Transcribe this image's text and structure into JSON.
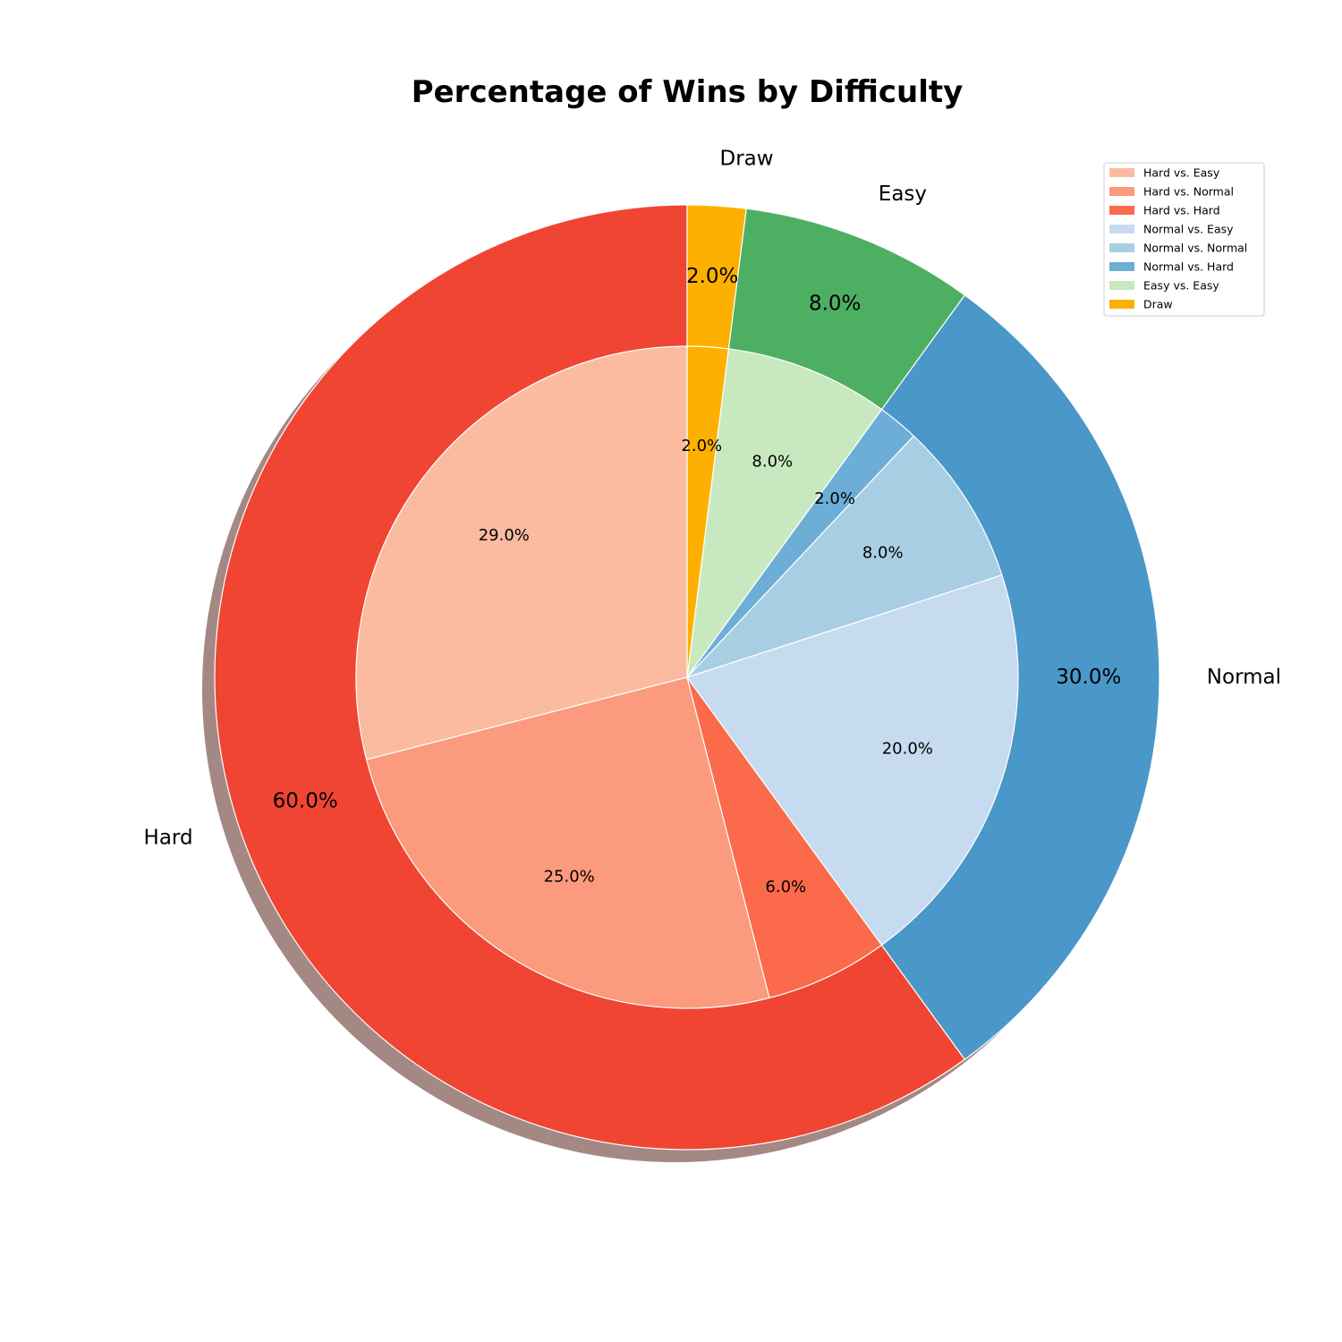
{
  "chart_data": {
    "type": "pie",
    "variant": "nested-donut",
    "title": "Percentage of Wins by Difficulty",
    "legend_position": "top-right",
    "shadow": true,
    "outer": [
      {
        "name": "Hard",
        "value": 60.0,
        "pct_label": "60.0%",
        "color": "#f04533"
      },
      {
        "name": "Normal",
        "value": 30.0,
        "pct_label": "30.0%",
        "color": "#4a97c9"
      },
      {
        "name": "Easy",
        "value": 8.0,
        "pct_label": "8.0%",
        "color": "#4daf62"
      },
      {
        "name": "Draw",
        "value": 2.0,
        "pct_label": "2.0%",
        "color": "#feb000"
      }
    ],
    "inner": [
      {
        "name": "Hard vs. Easy",
        "value": 29.0,
        "pct_label": "29.0%",
        "color": "#fabba1"
      },
      {
        "name": "Hard vs. Normal",
        "value": 25.0,
        "pct_label": "25.0%",
        "color": "#fb9a7c"
      },
      {
        "name": "Hard vs. Hard",
        "value": 6.0,
        "pct_label": "6.0%",
        "color": "#fb6a4a"
      },
      {
        "name": "Normal vs. Easy",
        "value": 20.0,
        "pct_label": "20.0%",
        "color": "#c6dbef"
      },
      {
        "name": "Normal vs. Normal",
        "value": 8.0,
        "pct_label": "8.0%",
        "color": "#a8cee4"
      },
      {
        "name": "Normal vs. Hard",
        "value": 2.0,
        "pct_label": "2.0%",
        "color": "#6daed7"
      },
      {
        "name": "Easy vs. Easy",
        "value": 8.0,
        "pct_label": "8.0%",
        "color": "#c8e9c0"
      },
      {
        "name": "Draw",
        "value": 2.0,
        "pct_label": "2.0%",
        "color": "#feb000"
      }
    ],
    "legend": [
      {
        "label": "Hard vs. Easy",
        "color": "#fabba1"
      },
      {
        "label": "Hard vs. Normal",
        "color": "#fb9a7c"
      },
      {
        "label": "Hard vs. Hard",
        "color": "#fb6a4a"
      },
      {
        "label": "Normal vs. Easy",
        "color": "#c6dbef"
      },
      {
        "label": "Normal vs. Normal",
        "color": "#a8cee4"
      },
      {
        "label": "Normal vs. Hard",
        "color": "#6daed7"
      },
      {
        "label": "Easy vs. Easy",
        "color": "#c8e9c0"
      },
      {
        "label": "Draw",
        "color": "#feb000"
      }
    ]
  }
}
